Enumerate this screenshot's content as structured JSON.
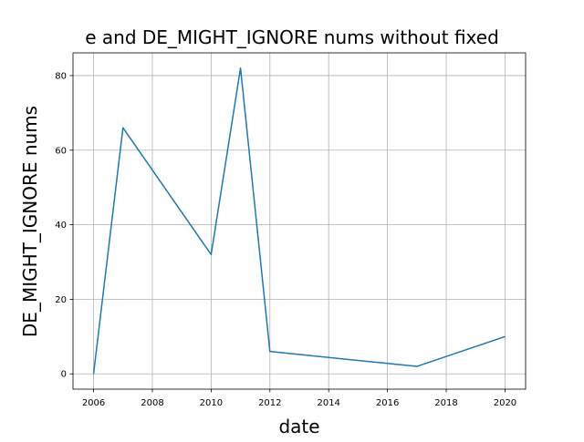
{
  "chart_data": {
    "type": "line",
    "title": "e and DE_MIGHT_IGNORE nums without fixed",
    "xlabel": "date",
    "ylabel": "DE_MIGHT_IGNORE nums",
    "x": [
      2006,
      2007,
      2010,
      2011,
      2012,
      2017,
      2020
    ],
    "series": [
      {
        "values": [
          0,
          66,
          32,
          82,
          6,
          2,
          10
        ]
      }
    ],
    "xlim": [
      2005.3,
      2020.7
    ],
    "ylim": [
      -4.1,
      86.1
    ],
    "xticks": [
      "2006",
      "2008",
      "2010",
      "2012",
      "2014",
      "2016",
      "2018",
      "2020"
    ],
    "yticks": [
      "0",
      "20",
      "40",
      "60",
      "80"
    ],
    "grid": true,
    "colors": {
      "line": "#1f77b4",
      "grid": "#b0b0b0",
      "axes": "#000000"
    }
  }
}
